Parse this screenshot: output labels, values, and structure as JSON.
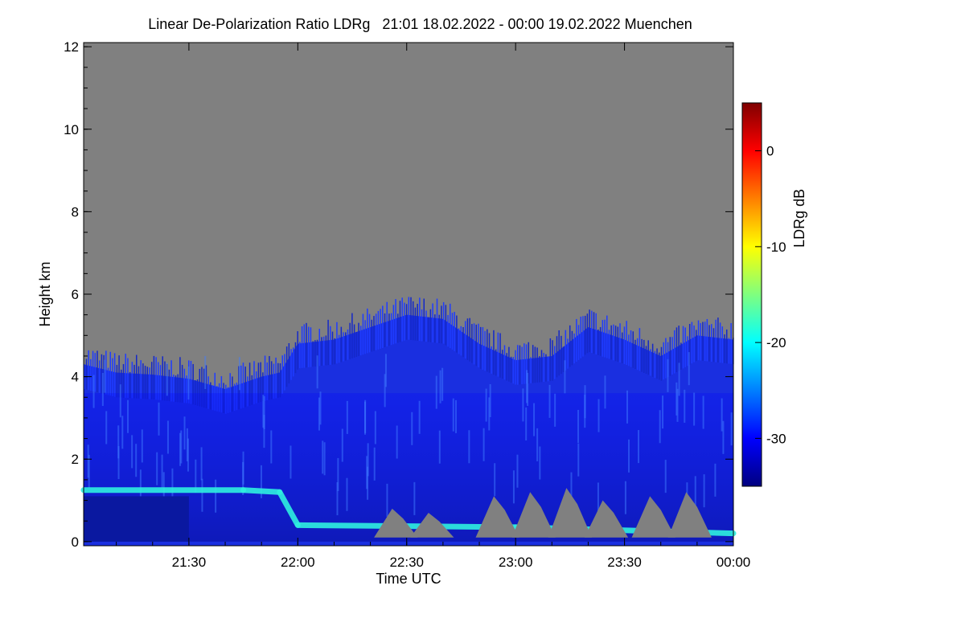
{
  "chart_data": {
    "type": "heatmap",
    "title": "Linear De-Polarization Ratio LDRg   21:01 18.02.2022 - 00:00 19.02.2022 Muenchen",
    "xlabel": "Time UTC",
    "ylabel": "Height km",
    "x_ticks": [
      "21:30",
      "22:00",
      "22:30",
      "23:00",
      "23:30",
      "00:00"
    ],
    "x_range": [
      "21:01",
      "00:00"
    ],
    "y_ticks": [
      0,
      2,
      4,
      6,
      8,
      10,
      12
    ],
    "ylim": [
      -0.1,
      12.1
    ],
    "colorbar": {
      "label": "LDRg dB",
      "ticks": [
        0,
        -10,
        -20,
        -30
      ],
      "range": [
        -35,
        5
      ],
      "colormap": [
        "#00007f",
        "#0000ff",
        "#007fff",
        "#00ffff",
        "#7fff7f",
        "#ffff00",
        "#ff7f00",
        "#ff0000",
        "#7f0000"
      ]
    },
    "no_signal_color": "#808080",
    "signal_top_km": [
      [
        "21:01",
        4.3
      ],
      [
        "21:10",
        4.1
      ],
      [
        "21:20",
        4.05
      ],
      [
        "21:30",
        3.95
      ],
      [
        "21:40",
        3.7
      ],
      [
        "21:50",
        4.0
      ],
      [
        "21:55",
        4.1
      ],
      [
        "22:00",
        4.8
      ],
      [
        "22:10",
        4.9
      ],
      [
        "22:20",
        5.2
      ],
      [
        "22:30",
        5.5
      ],
      [
        "22:40",
        5.4
      ],
      [
        "22:50",
        4.8
      ],
      [
        "23:00",
        4.4
      ],
      [
        "23:10",
        4.5
      ],
      [
        "23:20",
        5.2
      ],
      [
        "23:30",
        4.9
      ],
      [
        "23:40",
        4.5
      ],
      [
        "23:50",
        5.0
      ],
      [
        "00:00",
        4.9
      ]
    ],
    "low_layer_bright_band_km": [
      [
        "21:01",
        1.25
      ],
      [
        "21:45",
        1.25
      ],
      [
        "21:55",
        1.2
      ],
      [
        "22:00",
        0.4
      ],
      [
        "23:00",
        0.35
      ],
      [
        "00:00",
        0.2
      ]
    ]
  }
}
